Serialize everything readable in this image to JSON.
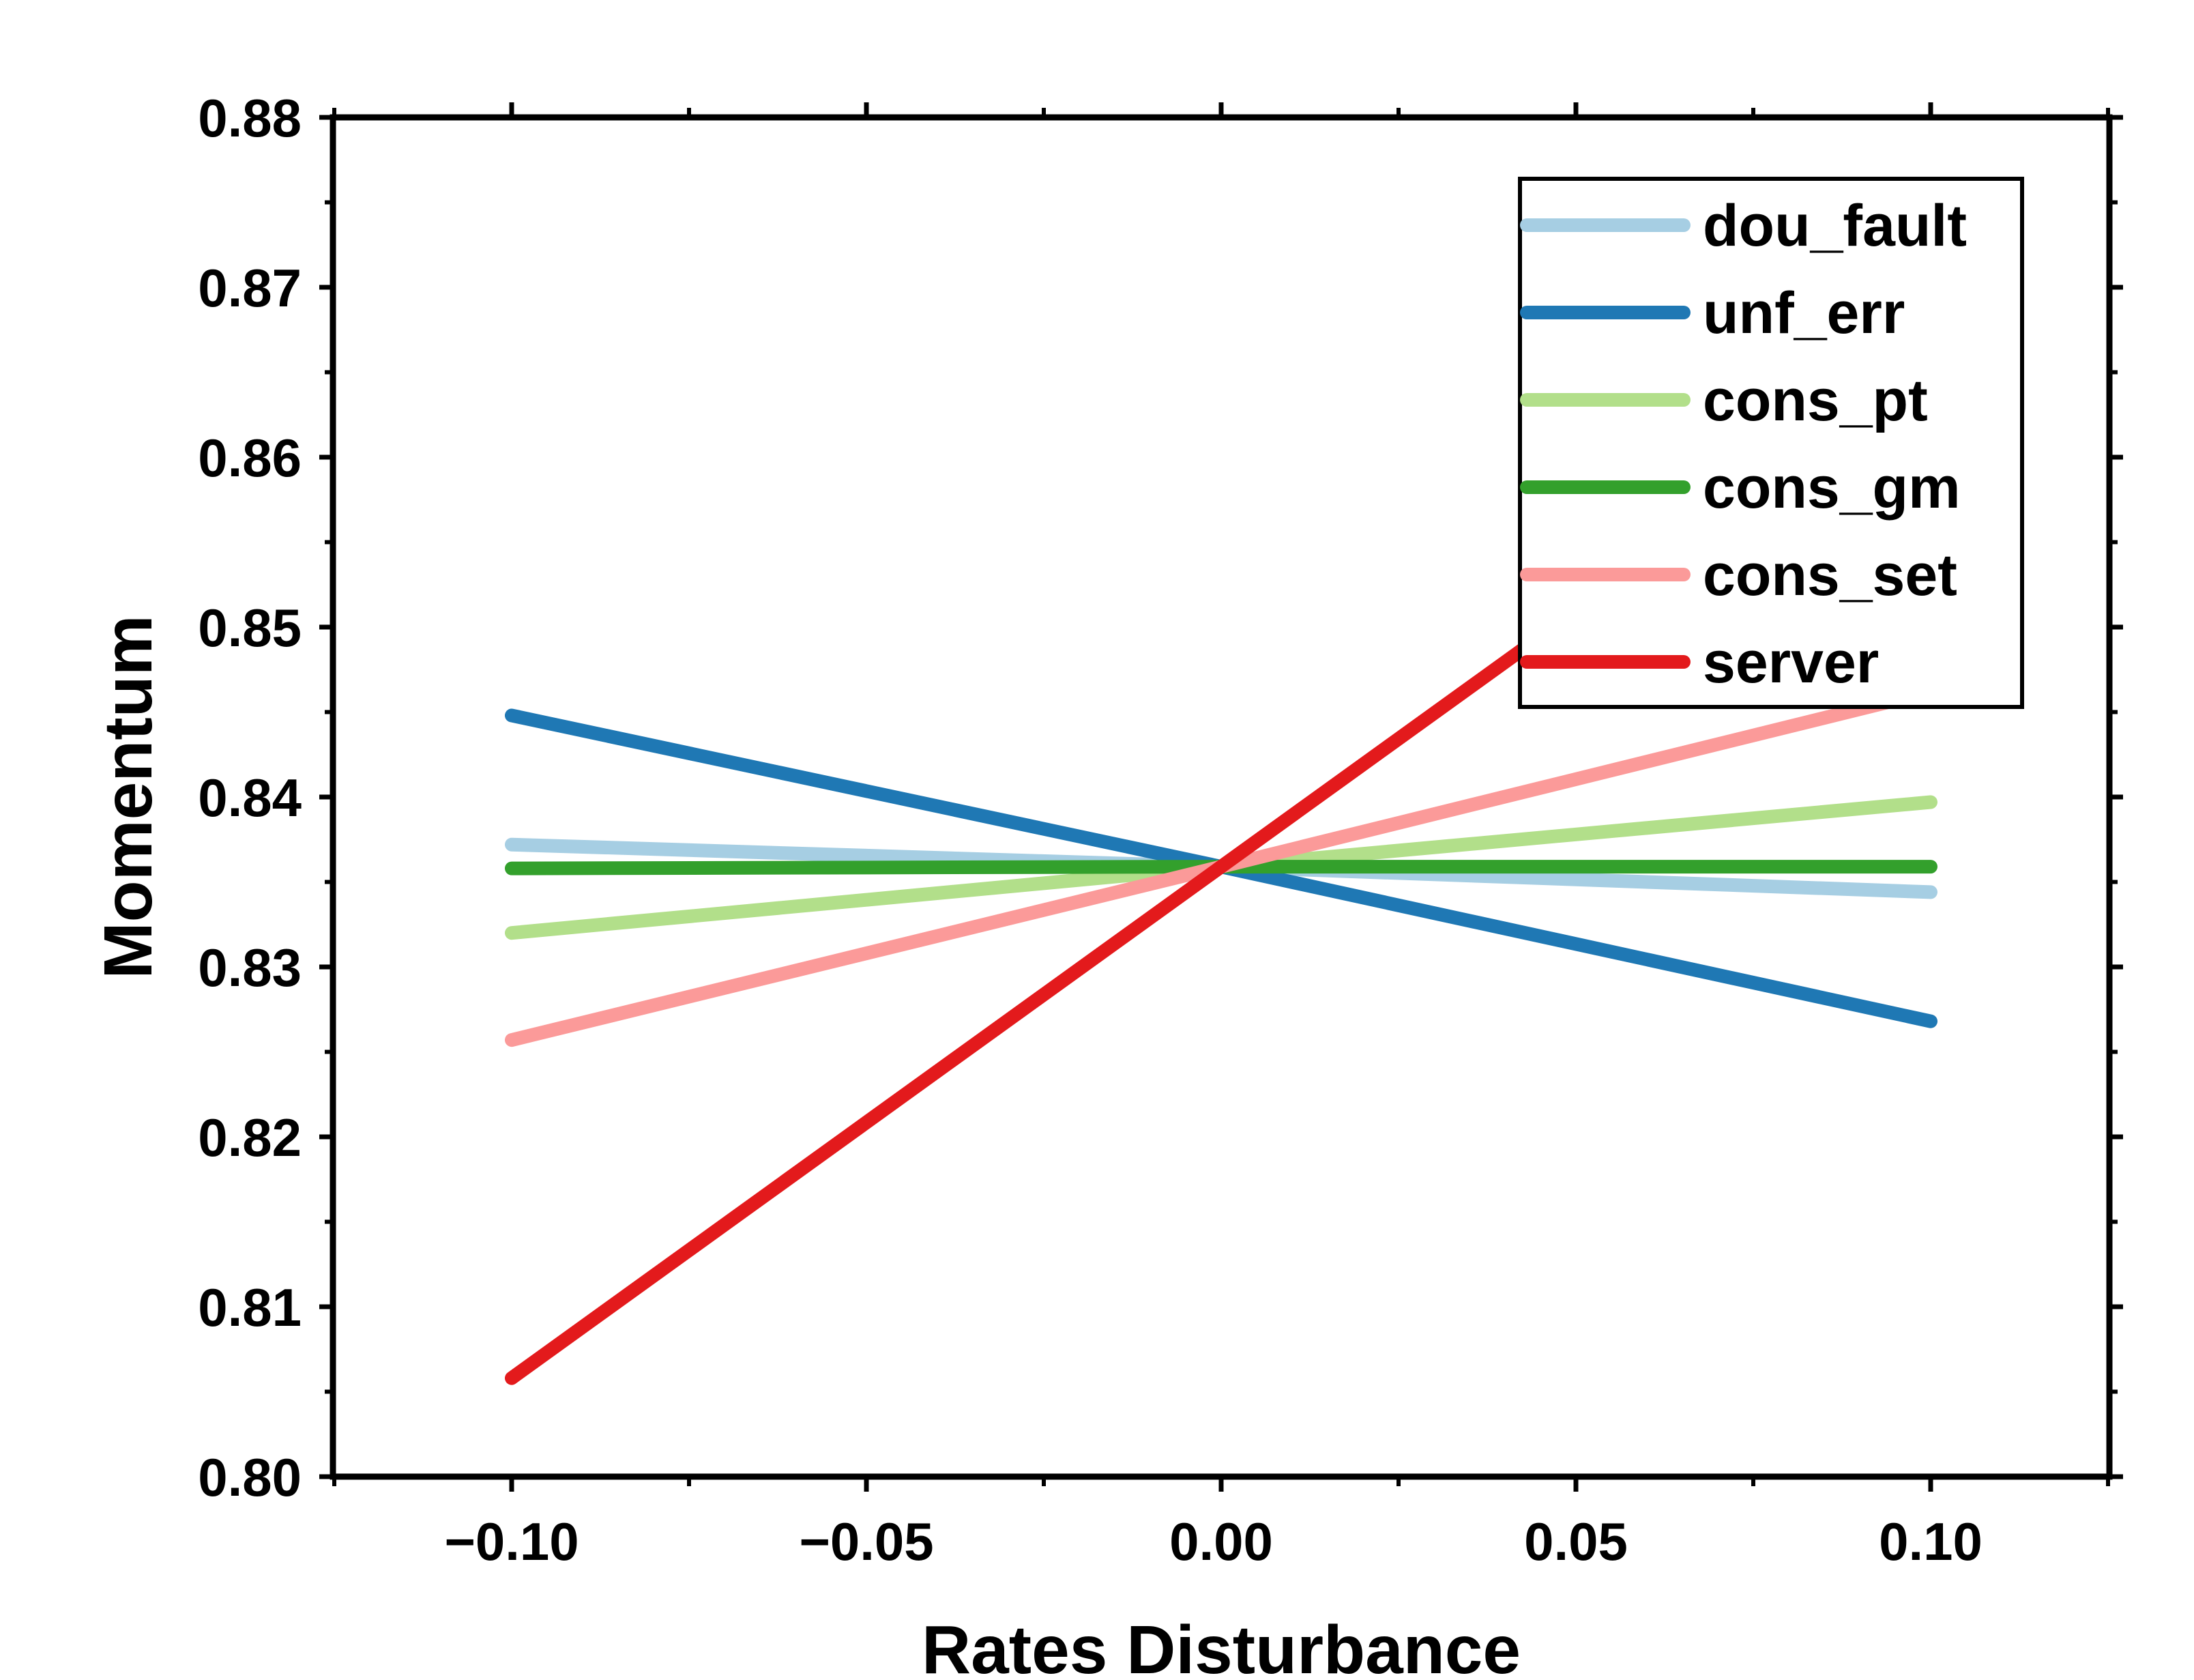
{
  "chart_data": {
    "type": "line",
    "title": "",
    "xlabel": "Rates Disturbance",
    "ylabel": "Momentum",
    "xlim": [
      -0.125,
      0.125
    ],
    "ylim": [
      0.8,
      0.88
    ],
    "xticks": [
      -0.1,
      -0.05,
      0.0,
      0.05,
      0.1
    ],
    "xtick_labels": [
      "−0.10",
      "−0.05",
      "0.00",
      "0.05",
      "0.10"
    ],
    "yticks": [
      0.8,
      0.81,
      0.82,
      0.83,
      0.84,
      0.85,
      0.86,
      0.87,
      0.88
    ],
    "ytick_labels": [
      "0.80",
      "0.81",
      "0.82",
      "0.83",
      "0.84",
      "0.85",
      "0.86",
      "0.87",
      "0.88"
    ],
    "grid": false,
    "legend_position": "top-right",
    "series": [
      {
        "name": "dou_fault",
        "color": "#a6cee3",
        "x": [
          -0.1,
          0.0,
          0.1
        ],
        "y": [
          0.8372,
          0.8359,
          0.8344
        ]
      },
      {
        "name": "unf_err",
        "color": "#1f78b4",
        "x": [
          -0.1,
          0.0,
          0.1
        ],
        "y": [
          0.8448,
          0.8359,
          0.8268
        ]
      },
      {
        "name": "cons_pt",
        "color": "#b2df8a",
        "x": [
          -0.1,
          0.0,
          0.1
        ],
        "y": [
          0.832,
          0.8359,
          0.8397
        ]
      },
      {
        "name": "cons_gm",
        "color": "#33a02c",
        "x": [
          -0.1,
          0.0,
          0.1
        ],
        "y": [
          0.8358,
          0.8359,
          0.8359
        ]
      },
      {
        "name": "cons_set",
        "color": "#fb9a99",
        "x": [
          -0.1,
          0.0,
          0.1
        ],
        "y": [
          0.8257,
          0.8359,
          0.8462
        ]
      },
      {
        "name": "server",
        "color": "#e31a1c",
        "x": [
          -0.1,
          0.0,
          0.1
        ],
        "y": [
          0.8058,
          0.8359,
          0.866
        ]
      }
    ]
  }
}
